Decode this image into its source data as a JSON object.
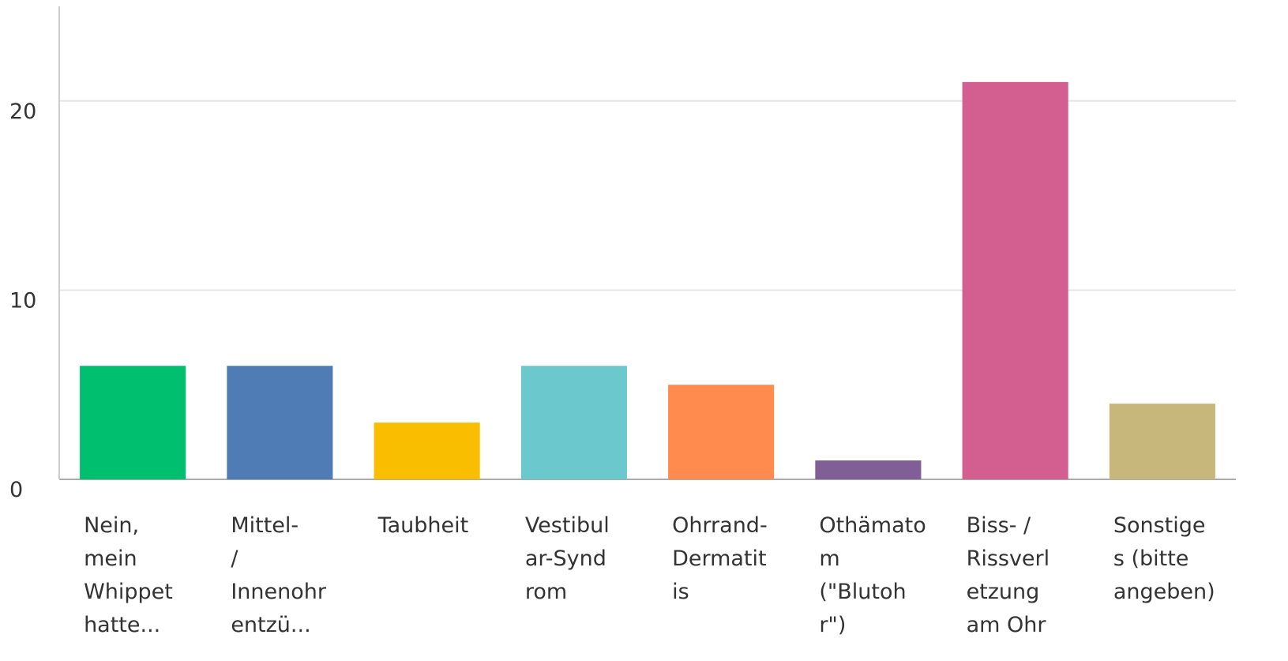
{
  "chart_data": {
    "type": "bar",
    "categories": [
      [
        "Nein,",
        "mein",
        "Whippet",
        "hatte..."
      ],
      [
        "Mittel-",
        "/",
        "Innenohr",
        "entzü..."
      ],
      [
        "Taubheit"
      ],
      [
        "Vestibul",
        "ar-Synd",
        "rom"
      ],
      [
        "Ohrrand-",
        "Dermatit",
        "is"
      ],
      [
        "Othämato",
        "m",
        "(\"Blutoh",
        "r\")"
      ],
      [
        "Biss- /",
        "Rissverl",
        "etzung",
        "am Ohr"
      ],
      [
        "Sonstige",
        "s (bitte",
        "angeben)"
      ]
    ],
    "values": [
      6,
      6,
      3,
      6,
      5,
      1,
      21,
      4
    ],
    "colors": [
      "#00bf6f",
      "#507cb6",
      "#f9be00",
      "#6bc8cd",
      "#ff8b4f",
      "#7f5f96",
      "#d25f90",
      "#c8b77a"
    ],
    "ylim": [
      0,
      25
    ],
    "yticks": [
      0,
      10,
      20
    ],
    "grid": true
  }
}
